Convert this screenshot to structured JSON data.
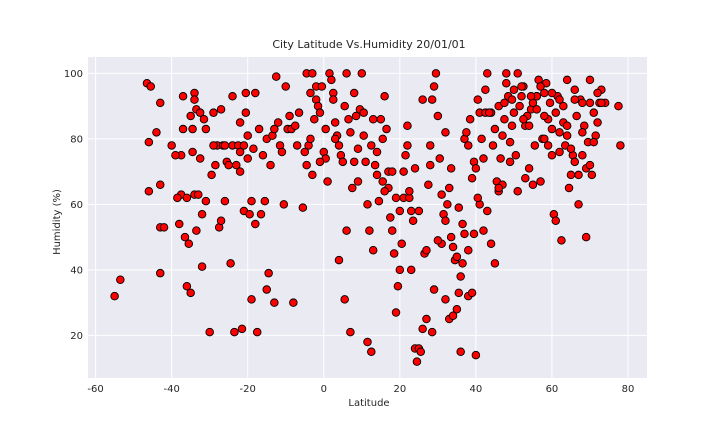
{
  "chart_data": {
    "type": "scatter",
    "title": "City Latitude Vs.Humidity 20/01/01",
    "xlabel": "Latitude",
    "ylabel": "Humidity (%)",
    "xlim": [
      -62,
      85
    ],
    "ylim": [
      7,
      105
    ],
    "xticks": [
      -60,
      -40,
      -20,
      0,
      20,
      40,
      60,
      80
    ],
    "yticks": [
      20,
      40,
      60,
      80,
      100
    ],
    "grid": true,
    "legend": "none",
    "colors": {
      "background": "#eaeaf2",
      "grid": "#ffffff",
      "marker_fill": "#ff0000",
      "marker_edge": "#000000"
    },
    "points": [
      [
        -55,
        32
      ],
      [
        -53.5,
        37
      ],
      [
        -46.5,
        97
      ],
      [
        -46,
        64
      ],
      [
        -45.5,
        96
      ],
      [
        -46,
        79
      ],
      [
        -44,
        82
      ],
      [
        -43,
        66
      ],
      [
        -43,
        91
      ],
      [
        -43,
        39
      ],
      [
        -43,
        53
      ],
      [
        -42,
        53
      ],
      [
        -40,
        78
      ],
      [
        -38,
        54
      ],
      [
        -37.5,
        75
      ],
      [
        -37.5,
        63
      ],
      [
        -37,
        93
      ],
      [
        -37,
        83
      ],
      [
        -36.5,
        50
      ],
      [
        -36,
        62
      ],
      [
        -36,
        35
      ],
      [
        -35.5,
        48
      ],
      [
        -35,
        33
      ],
      [
        -34.5,
        83
      ],
      [
        -34.5,
        76
      ],
      [
        -34,
        94
      ],
      [
        -34,
        92
      ],
      [
        -34,
        63
      ],
      [
        -33.5,
        89
      ],
      [
        -33.5,
        52
      ],
      [
        -33,
        63
      ],
      [
        -32.5,
        74
      ],
      [
        -32.5,
        88
      ],
      [
        -32,
        57
      ],
      [
        -32,
        41
      ],
      [
        -31.5,
        86
      ],
      [
        -31,
        61
      ],
      [
        -31,
        83
      ],
      [
        -30,
        21
      ],
      [
        -29.5,
        69
      ],
      [
        -29,
        88
      ],
      [
        -28.5,
        72
      ],
      [
        -28,
        78
      ],
      [
        -27.5,
        53
      ],
      [
        -27,
        55
      ],
      [
        -27,
        89
      ],
      [
        -26.5,
        78
      ],
      [
        -26,
        61
      ],
      [
        -25.5,
        73
      ],
      [
        -25,
        72
      ],
      [
        -24.5,
        42
      ],
      [
        -24,
        93
      ],
      [
        -24,
        78
      ],
      [
        -23.5,
        21
      ],
      [
        -23,
        72
      ],
      [
        -22.5,
        78
      ],
      [
        -22,
        85
      ],
      [
        -22,
        76
      ],
      [
        -22,
        70
      ],
      [
        -21.5,
        22
      ],
      [
        -21,
        78
      ],
      [
        -21,
        58
      ],
      [
        -20.5,
        94
      ],
      [
        -20.5,
        88
      ],
      [
        -20,
        81
      ],
      [
        -20,
        74
      ],
      [
        -19.5,
        57
      ],
      [
        -19,
        31
      ],
      [
        -19,
        61
      ],
      [
        -18.5,
        77
      ],
      [
        -18,
        54
      ],
      [
        -18,
        94
      ],
      [
        -17.5,
        21
      ],
      [
        -17,
        83
      ],
      [
        -16.5,
        57
      ],
      [
        -16,
        75
      ],
      [
        -15.5,
        61
      ],
      [
        -15,
        80
      ],
      [
        -15,
        34
      ],
      [
        -14.5,
        39
      ],
      [
        -14,
        72
      ],
      [
        -13.5,
        81
      ],
      [
        -13,
        83
      ],
      [
        -12.5,
        99
      ],
      [
        -12,
        85
      ],
      [
        -11.5,
        78
      ],
      [
        -11,
        76
      ],
      [
        -10.5,
        60
      ],
      [
        -10,
        96
      ],
      [
        -9.5,
        83
      ],
      [
        -9,
        87
      ],
      [
        -8.5,
        83
      ],
      [
        -8,
        30
      ],
      [
        -7,
        78
      ],
      [
        -6.5,
        88
      ],
      [
        -5.5,
        59
      ],
      [
        -5,
        76
      ],
      [
        -4.5,
        100
      ],
      [
        -4,
        78
      ],
      [
        -3.5,
        94
      ],
      [
        -3,
        69
      ],
      [
        -3,
        100
      ],
      [
        -2.5,
        86
      ],
      [
        -2,
        96
      ],
      [
        -2,
        92
      ],
      [
        -1.5,
        90
      ],
      [
        -1,
        88
      ],
      [
        -0.5,
        96
      ],
      [
        0,
        76
      ],
      [
        0.5,
        83
      ],
      [
        1,
        67
      ],
      [
        1.5,
        100
      ],
      [
        2,
        98
      ],
      [
        2.5,
        94
      ],
      [
        3,
        85
      ],
      [
        3.5,
        81
      ],
      [
        4,
        78
      ],
      [
        4.5,
        75
      ],
      [
        5,
        73
      ],
      [
        5.5,
        90
      ],
      [
        6,
        100
      ],
      [
        6.5,
        86
      ],
      [
        7,
        82
      ],
      [
        7.5,
        65
      ],
      [
        8,
        94
      ],
      [
        8.5,
        87
      ],
      [
        9,
        77
      ],
      [
        9.5,
        89
      ],
      [
        10,
        100
      ],
      [
        10.5,
        81
      ],
      [
        11,
        73
      ],
      [
        11.5,
        60
      ],
      [
        12,
        52
      ],
      [
        12.5,
        78
      ],
      [
        13,
        86
      ],
      [
        13.5,
        72
      ],
      [
        14,
        76
      ],
      [
        14.5,
        61
      ],
      [
        15,
        86
      ],
      [
        15.5,
        80
      ],
      [
        16,
        93
      ],
      [
        16.5,
        83
      ],
      [
        17,
        70
      ],
      [
        17.5,
        56
      ],
      [
        18,
        52
      ],
      [
        18.5,
        45
      ],
      [
        19,
        27
      ],
      [
        19.5,
        35
      ],
      [
        20,
        40
      ],
      [
        20.5,
        48
      ],
      [
        21,
        62
      ],
      [
        21.5,
        75
      ],
      [
        22,
        84
      ],
      [
        22.5,
        62
      ],
      [
        23,
        58
      ],
      [
        23.5,
        55
      ],
      [
        24,
        16
      ],
      [
        24.5,
        12
      ],
      [
        25,
        16
      ],
      [
        25.5,
        15
      ],
      [
        26,
        22
      ],
      [
        26.5,
        45
      ],
      [
        27,
        46
      ],
      [
        27.5,
        66
      ],
      [
        28,
        72
      ],
      [
        28.5,
        92
      ],
      [
        29,
        96
      ],
      [
        29.5,
        100
      ],
      [
        30,
        87
      ],
      [
        30.5,
        74
      ],
      [
        31,
        63
      ],
      [
        31.5,
        57
      ],
      [
        32,
        55
      ],
      [
        32.5,
        60
      ],
      [
        33,
        65
      ],
      [
        33.5,
        50
      ],
      [
        34,
        47
      ],
      [
        34.5,
        43
      ],
      [
        35,
        28
      ],
      [
        35.5,
        33
      ],
      [
        36,
        38
      ],
      [
        36.5,
        42
      ],
      [
        37,
        80
      ],
      [
        37.5,
        82
      ],
      [
        38,
        78
      ],
      [
        38.5,
        86
      ],
      [
        39,
        68
      ],
      [
        39.5,
        73
      ],
      [
        40,
        71
      ],
      [
        40.5,
        92
      ],
      [
        41,
        88
      ],
      [
        41.5,
        80
      ],
      [
        42,
        74
      ],
      [
        42.5,
        95
      ],
      [
        43,
        100
      ],
      [
        44,
        88
      ],
      [
        44.5,
        78
      ],
      [
        45,
        83
      ],
      [
        45.5,
        67
      ],
      [
        46,
        90
      ],
      [
        46.5,
        74
      ],
      [
        47,
        81
      ],
      [
        47.5,
        86
      ],
      [
        48,
        100
      ],
      [
        48.5,
        93
      ],
      [
        49,
        79
      ],
      [
        49.5,
        84
      ],
      [
        50,
        88
      ],
      [
        50.5,
        75
      ],
      [
        51,
        64
      ],
      [
        51.5,
        90
      ],
      [
        52,
        93
      ],
      [
        52.5,
        96
      ],
      [
        53,
        84
      ],
      [
        53.5,
        87
      ],
      [
        54,
        71
      ],
      [
        54.5,
        89
      ],
      [
        55,
        91
      ],
      [
        55.5,
        78
      ],
      [
        56,
        93
      ],
      [
        56.5,
        98
      ],
      [
        57,
        67
      ],
      [
        57.5,
        80
      ],
      [
        58,
        94
      ],
      [
        58.5,
        97
      ],
      [
        59,
        86
      ],
      [
        59.5,
        91
      ],
      [
        60,
        75
      ],
      [
        60.5,
        57
      ],
      [
        61,
        55
      ],
      [
        61.5,
        93
      ],
      [
        62,
        82
      ],
      [
        62.5,
        49
      ],
      [
        63,
        90
      ],
      [
        63.5,
        78
      ],
      [
        64,
        98
      ],
      [
        64.5,
        65
      ],
      [
        65,
        69
      ],
      [
        65.5,
        75
      ],
      [
        66,
        95
      ],
      [
        66.5,
        87
      ],
      [
        67,
        60
      ],
      [
        67.5,
        92
      ],
      [
        68,
        91
      ],
      [
        68.5,
        84
      ],
      [
        69,
        71
      ],
      [
        69.5,
        79
      ],
      [
        70,
        98
      ],
      [
        70.5,
        69
      ],
      [
        71,
        88
      ],
      [
        71.5,
        81
      ],
      [
        72,
        85
      ],
      [
        72.5,
        91
      ],
      [
        73,
        95
      ],
      [
        74,
        91
      ],
      [
        77.5,
        90
      ],
      [
        78,
        78
      ],
      [
        -39,
        75
      ],
      [
        -38.5,
        62
      ],
      [
        -35,
        87
      ],
      [
        -29,
        78
      ],
      [
        -26,
        78
      ],
      [
        -13,
        30
      ],
      [
        -7.5,
        84
      ],
      [
        -4.5,
        72
      ],
      [
        0.5,
        74
      ],
      [
        3,
        80
      ],
      [
        5.5,
        31
      ],
      [
        6,
        52
      ],
      [
        7,
        21
      ],
      [
        9,
        67
      ],
      [
        11.5,
        18
      ],
      [
        12.5,
        15
      ],
      [
        13,
        46
      ],
      [
        15.5,
        67
      ],
      [
        17,
        65
      ],
      [
        19,
        62
      ],
      [
        21,
        70
      ],
      [
        22.5,
        64
      ],
      [
        24,
        71
      ],
      [
        26,
        92
      ],
      [
        28,
        78
      ],
      [
        28.5,
        21
      ],
      [
        29,
        34
      ],
      [
        31,
        48
      ],
      [
        32,
        31
      ],
      [
        33,
        25
      ],
      [
        34,
        26
      ],
      [
        35,
        44
      ],
      [
        36,
        15
      ],
      [
        37,
        51
      ],
      [
        38,
        32
      ],
      [
        39,
        33
      ],
      [
        39.5,
        51
      ],
      [
        40,
        14
      ],
      [
        41,
        60
      ],
      [
        42,
        52
      ],
      [
        43,
        58
      ],
      [
        44,
        48
      ],
      [
        45,
        42
      ],
      [
        46,
        64
      ],
      [
        47,
        66
      ],
      [
        48,
        97
      ],
      [
        49,
        73
      ],
      [
        50,
        95
      ],
      [
        51,
        100
      ],
      [
        52,
        96
      ],
      [
        53,
        68
      ],
      [
        54,
        84
      ],
      [
        55,
        66
      ],
      [
        56,
        93
      ],
      [
        57,
        96
      ],
      [
        58,
        87
      ],
      [
        59,
        78
      ],
      [
        60,
        83
      ],
      [
        61,
        88
      ],
      [
        62,
        92
      ],
      [
        63,
        85
      ],
      [
        64,
        81
      ],
      [
        65,
        77
      ],
      [
        66,
        73
      ],
      [
        67,
        69
      ],
      [
        68,
        75
      ],
      [
        69,
        50
      ],
      [
        70,
        72
      ],
      [
        71,
        79
      ],
      [
        72,
        94
      ],
      [
        73,
        91
      ],
      [
        -3.5,
        80
      ],
      [
        -1,
        73
      ],
      [
        2.5,
        92
      ],
      [
        4,
        43
      ],
      [
        8,
        73
      ],
      [
        10.5,
        88
      ],
      [
        14,
        69
      ],
      [
        16,
        64
      ],
      [
        18,
        70
      ],
      [
        20,
        58
      ],
      [
        22,
        78
      ],
      [
        23,
        40
      ],
      [
        25,
        58
      ],
      [
        27,
        25
      ],
      [
        30,
        49
      ],
      [
        32,
        82
      ],
      [
        33.5,
        71
      ],
      [
        35.5,
        59
      ],
      [
        36.5,
        54
      ],
      [
        38,
        46
      ],
      [
        40.5,
        62
      ],
      [
        42.5,
        88
      ],
      [
        43.5,
        88
      ],
      [
        46,
        65
      ],
      [
        47.5,
        91
      ],
      [
        49.5,
        92
      ],
      [
        52.5,
        86
      ],
      [
        54.5,
        93
      ],
      [
        56,
        89
      ],
      [
        58,
        80
      ],
      [
        60,
        94
      ],
      [
        62,
        76
      ],
      [
        64,
        84
      ],
      [
        66,
        92
      ],
      [
        68,
        82
      ],
      [
        70,
        91
      ]
    ]
  }
}
